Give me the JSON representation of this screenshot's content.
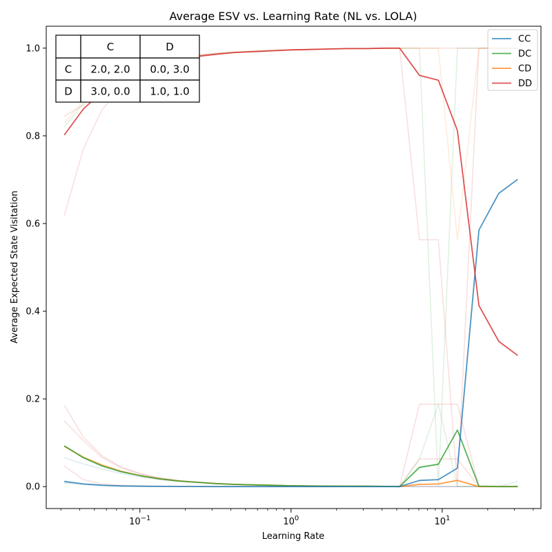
{
  "chart_data": {
    "type": "line",
    "title": "Average ESV vs. Learning Rate (NL vs. LOLA)",
    "xlabel": "Learning Rate",
    "ylabel": "Average Expected State Visitation",
    "xscale": "log",
    "xlim": [
      0.024,
      45
    ],
    "ylim": [
      -0.05,
      1.05
    ],
    "xticks": [
      {
        "value": 0.1,
        "base": "10",
        "exp": "−1"
      },
      {
        "value": 1,
        "base": "10",
        "exp": "0"
      },
      {
        "value": 10,
        "base": "10",
        "exp": "1"
      }
    ],
    "yticks": [
      {
        "value": 0.0,
        "label": "0.0"
      },
      {
        "value": 0.2,
        "label": "0.2"
      },
      {
        "value": 0.4,
        "label": "0.4"
      },
      {
        "value": 0.6,
        "label": "0.6"
      },
      {
        "value": 0.8,
        "label": "0.8"
      },
      {
        "value": 1.0,
        "label": "1.0"
      }
    ],
    "legend_position": "top-right",
    "x": [
      0.0316,
      0.0422,
      0.0562,
      0.075,
      0.1,
      0.133,
      0.178,
      0.237,
      0.316,
      0.422,
      0.562,
      0.75,
      1.0,
      1.33,
      1.78,
      2.37,
      3.16,
      4.22,
      5.23,
      7.07,
      9.43,
      12.6,
      17.5,
      23.7,
      31.6
    ],
    "series": [
      {
        "name": "CC",
        "color": "#1f77b4",
        "values": [
          0.012,
          0.006,
          0.003,
          0.0015,
          0.0008,
          0.0005,
          0.0003,
          0.0002,
          0.0001,
          0.0001,
          0.0001,
          0.0,
          0.0,
          0.0,
          0.0,
          0.0,
          0.0,
          0.0,
          0.0,
          0.014,
          0.016,
          0.042,
          0.585,
          0.669,
          0.701
        ]
      },
      {
        "name": "DC",
        "color": "#2ca02c",
        "values": [
          0.093,
          0.066,
          0.047,
          0.034,
          0.025,
          0.018,
          0.013,
          0.01,
          0.007,
          0.005,
          0.004,
          0.003,
          0.002,
          0.0015,
          0.0012,
          0.001,
          0.0008,
          0.0005,
          0.0,
          0.044,
          0.051,
          0.129,
          0.001,
          0.0,
          0.0
        ]
      },
      {
        "name": "CD",
        "color": "#ff7f0e",
        "values": [
          0.092,
          0.067,
          0.049,
          0.035,
          0.025,
          0.018,
          0.013,
          0.01,
          0.007,
          0.005,
          0.004,
          0.003,
          0.002,
          0.0015,
          0.0012,
          0.001,
          0.0008,
          0.0005,
          0.0,
          0.005,
          0.006,
          0.014,
          0.0,
          0.0,
          0.0
        ]
      },
      {
        "name": "DD",
        "color": "#d62728",
        "values": [
          0.802,
          0.861,
          0.901,
          0.93,
          0.95,
          0.964,
          0.974,
          0.981,
          0.986,
          0.99,
          0.992,
          0.994,
          0.996,
          0.997,
          0.998,
          0.999,
          0.999,
          1.0,
          1.0,
          0.938,
          0.927,
          0.812,
          0.413,
          0.331,
          0.299
        ]
      }
    ],
    "background_traces": [
      {
        "color": "#d62728",
        "values": [
          0.618,
          0.77,
          0.86,
          0.91,
          0.94,
          0.96,
          0.97,
          0.98,
          0.985,
          0.99,
          0.992,
          0.994,
          0.996,
          0.997,
          0.998,
          0.999,
          0.999,
          1.0,
          1.0,
          0.563,
          0.563,
          0.0,
          1.0,
          1.0,
          1.0
        ]
      },
      {
        "color": "#d62728",
        "values": [
          0.845,
          0.87,
          0.91,
          0.94,
          0.955,
          0.97,
          0.978,
          0.984,
          0.988,
          0.991,
          0.993,
          0.995,
          0.996,
          0.997,
          0.998,
          0.999,
          0.999,
          1.0,
          1.0,
          1.0,
          1.0,
          1.0,
          1.0,
          1.0,
          1.0
        ]
      },
      {
        "color": "#2ca02c",
        "values": [
          0.82,
          0.875,
          0.915,
          0.94,
          0.955,
          0.968,
          0.977,
          0.983,
          0.988,
          0.991,
          0.993,
          0.995,
          0.996,
          0.997,
          0.998,
          0.999,
          0.999,
          1.0,
          1.0,
          1.0,
          0.0,
          1.0,
          1.0,
          1.0,
          1.0
        ]
      },
      {
        "color": "#ff7f0e",
        "values": [
          0.83,
          0.88,
          0.915,
          0.94,
          0.955,
          0.968,
          0.977,
          0.983,
          0.988,
          0.991,
          0.993,
          0.995,
          0.996,
          0.997,
          0.998,
          0.999,
          0.999,
          1.0,
          1.0,
          1.0,
          1.0,
          0.563,
          1.0,
          1.0,
          1.0
        ]
      },
      {
        "color": "#d62728",
        "values": [
          0.186,
          0.113,
          0.07,
          0.045,
          0.03,
          0.02,
          0.014,
          0.01,
          0.007,
          0.005,
          0.004,
          0.003,
          0.002,
          0.0015,
          0.0012,
          0.001,
          0.0008,
          0.0005,
          0.0,
          0.188,
          0.188,
          0.188,
          0.0,
          0.0,
          0.0
        ]
      },
      {
        "color": "#d62728",
        "values": [
          0.15,
          0.105,
          0.066,
          0.043,
          0.029,
          0.02,
          0.014,
          0.01,
          0.007,
          0.005,
          0.004,
          0.003,
          0.002,
          0.0015,
          0.0012,
          0.001,
          0.0008,
          0.0005,
          0.0,
          0.063,
          0.063,
          0.063,
          0.0,
          0.0,
          0.0
        ]
      },
      {
        "color": "#1f77b4",
        "values": [
          0.066,
          0.052,
          0.04,
          0.03,
          0.022,
          0.016,
          0.012,
          0.009,
          0.007,
          0.005,
          0.004,
          0.003,
          0.002,
          0.0015,
          0.0012,
          0.001,
          0.0008,
          0.0005,
          0.0,
          0.0,
          0.0,
          0.0,
          0.0,
          0.0,
          0.0
        ]
      },
      {
        "color": "#d62728",
        "values": [
          0.047,
          0.016,
          0.006,
          0.003,
          0.0015,
          0.001,
          0.0005,
          0.0003,
          0.0002,
          0.0001,
          0.0001,
          0.0,
          0.0,
          0.0,
          0.0,
          0.0,
          0.0,
          0.0,
          0.0,
          0.0,
          0.0,
          0.0,
          0.0,
          0.0,
          0.0
        ]
      },
      {
        "color": "#2ca02c",
        "values": [
          0.01,
          0.006,
          0.003,
          0.0015,
          0.0008,
          0.0005,
          0.0003,
          0.0002,
          0.0001,
          0.0001,
          0.0001,
          0.0,
          0.0,
          0.0,
          0.0,
          0.0,
          0.0,
          0.0,
          0.0,
          0.063,
          0.188,
          0.0,
          0.0,
          0.0,
          0.0
        ]
      },
      {
        "color": "#1f77b4",
        "values": [
          0.008,
          0.005,
          0.003,
          0.0015,
          0.0008,
          0.0005,
          0.0003,
          0.0002,
          0.0001,
          0.0001,
          0.0001,
          0.0,
          0.0,
          0.0,
          0.0,
          0.0,
          0.0,
          0.0,
          0.0,
          0.0,
          0.0,
          0.0,
          0.0,
          0.0,
          0.012
        ]
      }
    ],
    "payoff_table": {
      "col_headers": [
        "",
        "C",
        "D"
      ],
      "rows": [
        {
          "label": "C",
          "cells": [
            "2.0, 2.0",
            "0.0, 3.0"
          ]
        },
        {
          "label": "D",
          "cells": [
            "3.0, 0.0",
            "1.0, 1.0"
          ]
        }
      ]
    }
  }
}
